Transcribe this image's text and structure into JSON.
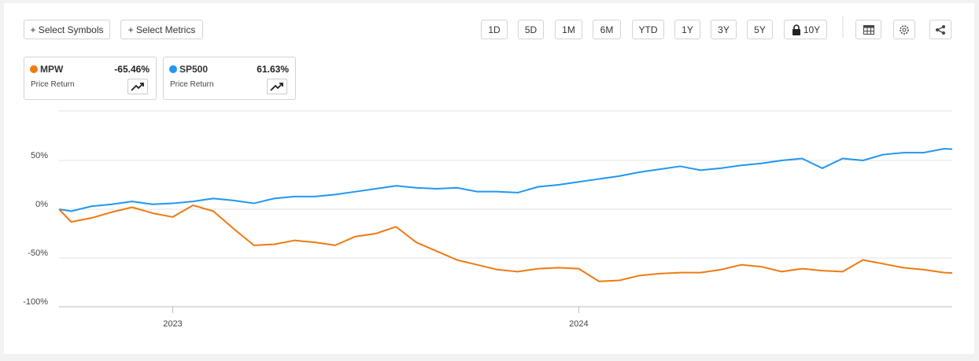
{
  "toolbar": {
    "select_symbols": "+ Select Symbols",
    "select_metrics": "+ Select Metrics",
    "ranges": [
      "1D",
      "5D",
      "1M",
      "6M",
      "YTD",
      "1Y",
      "3Y",
      "5Y",
      "10Y"
    ]
  },
  "chart_data": {
    "type": "line",
    "x": [
      2022.72,
      2022.75,
      2022.8,
      2022.85,
      2022.9,
      2022.95,
      2023.0,
      2023.05,
      2023.1,
      2023.15,
      2023.2,
      2023.25,
      2023.3,
      2023.35,
      2023.4,
      2023.45,
      2023.5,
      2023.55,
      2023.6,
      2023.65,
      2023.7,
      2023.75,
      2023.8,
      2023.85,
      2023.9,
      2023.95,
      2024.0,
      2024.05,
      2024.1,
      2024.15,
      2024.2,
      2024.25,
      2024.3,
      2024.35,
      2024.4,
      2024.45,
      2024.5,
      2024.55,
      2024.6,
      2024.65,
      2024.7,
      2024.75,
      2024.8,
      2024.85,
      2024.9,
      2024.92
    ],
    "xlim": [
      2022.72,
      2024.92
    ],
    "xticks": [
      2023,
      2024
    ],
    "ylim": [
      -100,
      100
    ],
    "yticks": [
      {
        "value": -100,
        "label": "-100%"
      },
      {
        "value": -50,
        "label": "-50%"
      },
      {
        "value": 0,
        "label": "0%"
      },
      {
        "value": 50,
        "label": "50%"
      }
    ],
    "grid": true,
    "series": [
      {
        "name": "MPW",
        "color": "#ef7a12",
        "change_label": "-65.46%",
        "metric": "Price Return",
        "values": [
          0,
          -13,
          -9,
          -3,
          2,
          -4,
          -8,
          4,
          -2,
          -20,
          -37,
          -36,
          -32,
          -34,
          -37,
          -28,
          -25,
          -18,
          -34,
          -43,
          -52,
          -57,
          -62,
          -64,
          -61,
          -60,
          -61,
          -74,
          -73,
          -68,
          -66,
          -65,
          -65,
          -62,
          -57,
          -59,
          -64,
          -61,
          -63,
          -64,
          -52,
          -56,
          -60,
          -62,
          -65,
          -65.46
        ]
      },
      {
        "name": "SP500",
        "color": "#2196f3",
        "change_label": "61.63%",
        "metric": "Price Return",
        "values": [
          0,
          -2,
          3,
          5,
          8,
          5,
          6,
          8,
          11,
          9,
          6,
          11,
          13,
          13,
          15,
          18,
          21,
          24,
          22,
          21,
          22,
          18,
          18,
          17,
          23,
          25,
          28,
          31,
          34,
          38,
          41,
          44,
          40,
          42,
          45,
          47,
          50,
          52,
          42,
          52,
          50,
          56,
          58,
          58,
          62,
          61.63
        ]
      }
    ]
  }
}
